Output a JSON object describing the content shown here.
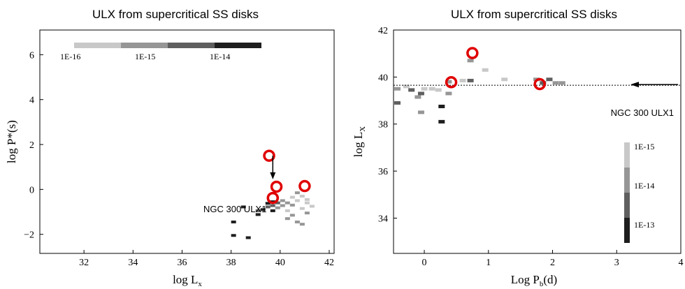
{
  "chart_data": [
    {
      "type": "heatmap",
      "title": "ULX from supercritical SS disks",
      "xlabel_main": "log L",
      "xlabel_sub": "x",
      "ylabel": "log P*(s)",
      "xlim": [
        30.2,
        42.2
      ],
      "ylim": [
        -2.85,
        7.1
      ],
      "xticks": [
        "32",
        "34",
        "36",
        "38",
        "40",
        "42"
      ],
      "yticks": [
        "6",
        "4",
        "2",
        "0",
        "−2"
      ],
      "ytick_values": [
        6,
        4,
        2,
        0,
        -2
      ],
      "colorbar": {
        "orientation": "horizontal",
        "labels": [
          "1E-16",
          "1E-15",
          "1E-14"
        ],
        "colors": [
          "#c8c8c8",
          "#969696",
          "#5f5f5f",
          "#1e1e1e"
        ]
      },
      "annotation": {
        "text": "NGC 300 ULX1",
        "x": 39.7,
        "y_from": 1.5,
        "y_to": 0.45
      },
      "cells": [
        {
          "x": 38.1,
          "y": -1.45,
          "c": "#1e1e1e"
        },
        {
          "x": 38.1,
          "y": -2.05,
          "c": "#1e1e1e"
        },
        {
          "x": 38.7,
          "y": -2.15,
          "c": "#1e1e1e"
        },
        {
          "x": 38.5,
          "y": -0.78,
          "c": "#1e1e1e"
        },
        {
          "x": 39.1,
          "y": -1.12,
          "c": "#1e1e1e"
        },
        {
          "x": 39.1,
          "y": -0.95,
          "c": "#5f5f5f"
        },
        {
          "x": 39.3,
          "y": -0.9,
          "c": "#1e1e1e"
        },
        {
          "x": 39.5,
          "y": -0.78,
          "c": "#5f5f5f"
        },
        {
          "x": 39.5,
          "y": -0.62,
          "c": "#1e1e1e"
        },
        {
          "x": 39.7,
          "y": -0.95,
          "c": "#1e1e1e"
        },
        {
          "x": 39.7,
          "y": -0.72,
          "c": "#5f5f5f"
        },
        {
          "x": 39.7,
          "y": -0.55,
          "c": "#1e1e1e"
        },
        {
          "x": 39.9,
          "y": -0.82,
          "c": "#969696"
        },
        {
          "x": 39.9,
          "y": -0.6,
          "c": "#5f5f5f"
        },
        {
          "x": 40.1,
          "y": -0.72,
          "c": "#969696"
        },
        {
          "x": 40.1,
          "y": -0.5,
          "c": "#969696"
        },
        {
          "x": 40.3,
          "y": -0.95,
          "c": "#c8c8c8"
        },
        {
          "x": 40.3,
          "y": -0.6,
          "c": "#969696"
        },
        {
          "x": 40.3,
          "y": -1.3,
          "c": "#969696"
        },
        {
          "x": 40.5,
          "y": -0.35,
          "c": "#c8c8c8"
        },
        {
          "x": 40.5,
          "y": -0.7,
          "c": "#969696"
        },
        {
          "x": 40.5,
          "y": -1.15,
          "c": "#969696"
        },
        {
          "x": 40.7,
          "y": -0.5,
          "c": "#c8c8c8"
        },
        {
          "x": 40.7,
          "y": -1.45,
          "c": "#969696"
        },
        {
          "x": 40.7,
          "y": -0.15,
          "c": "#969696"
        },
        {
          "x": 40.9,
          "y": -0.85,
          "c": "#c8c8c8"
        },
        {
          "x": 40.9,
          "y": -0.3,
          "c": "#c8c8c8"
        },
        {
          "x": 41.1,
          "y": -1.05,
          "c": "#969696"
        },
        {
          "x": 41.1,
          "y": -0.6,
          "c": "#c8c8c8"
        },
        {
          "x": 41.3,
          "y": -0.75,
          "c": "#c8c8c8"
        },
        {
          "x": 41.1,
          "y": -0.45,
          "c": "#c8c8c8"
        },
        {
          "x": 40.9,
          "y": -1.55,
          "c": "#969696"
        }
      ],
      "circles": [
        {
          "x": 39.55,
          "y": 1.5
        },
        {
          "x": 39.85,
          "y": 0.12
        },
        {
          "x": 39.7,
          "y": -0.38
        },
        {
          "x": 41.0,
          "y": 0.15
        }
      ]
    },
    {
      "type": "heatmap",
      "title": "ULX from supercritical SS disks",
      "xlabel_main": "Log P",
      "xlabel_sub": "b",
      "xlabel_tail": "(d)",
      "ylabel_main": "log L",
      "ylabel_sub": "X",
      "xlim": [
        -0.48,
        4.0
      ],
      "ylim": [
        32.5,
        42.0
      ],
      "xticks": [
        "0",
        "1",
        "2",
        "3",
        "4"
      ],
      "xtick_values": [
        0,
        1,
        2,
        3,
        4
      ],
      "yticks": [
        "34",
        "36",
        "38",
        "40",
        "42"
      ],
      "ytick_values": [
        34,
        36,
        38,
        40,
        42
      ],
      "colorbar": {
        "orientation": "vertical",
        "labels": [
          "1E-15",
          "1E-14",
          "1E-13"
        ],
        "colors": [
          "#c8c8c8",
          "#969696",
          "#5f5f5f",
          "#1e1e1e"
        ]
      },
      "reference_line": {
        "y": 39.65,
        "label": "NGC 300 ULX1"
      },
      "cells": [
        {
          "x": -0.42,
          "y": 39.5,
          "c": "#969696"
        },
        {
          "x": -0.42,
          "y": 38.9,
          "c": "#5f5f5f"
        },
        {
          "x": -0.28,
          "y": 39.6,
          "c": "#c8c8c8"
        },
        {
          "x": -0.2,
          "y": 39.45,
          "c": "#5f5f5f"
        },
        {
          "x": -0.1,
          "y": 39.15,
          "c": "#969696"
        },
        {
          "x": -0.05,
          "y": 39.3,
          "c": "#5f5f5f"
        },
        {
          "x": 0.0,
          "y": 39.5,
          "c": "#c8c8c8"
        },
        {
          "x": -0.05,
          "y": 38.5,
          "c": "#969696"
        },
        {
          "x": 0.12,
          "y": 39.5,
          "c": "#c8c8c8"
        },
        {
          "x": 0.22,
          "y": 39.45,
          "c": "#c8c8c8"
        },
        {
          "x": 0.27,
          "y": 38.75,
          "c": "#1e1e1e"
        },
        {
          "x": 0.27,
          "y": 38.1,
          "c": "#1e1e1e"
        },
        {
          "x": 0.38,
          "y": 39.3,
          "c": "#969696"
        },
        {
          "x": 0.38,
          "y": 39.8,
          "c": "#969696"
        },
        {
          "x": 0.6,
          "y": 39.85,
          "c": "#c8c8c8"
        },
        {
          "x": 0.72,
          "y": 39.85,
          "c": "#5f5f5f"
        },
        {
          "x": 0.72,
          "y": 40.7,
          "c": "#969696"
        },
        {
          "x": 0.95,
          "y": 40.3,
          "c": "#c8c8c8"
        },
        {
          "x": 1.25,
          "y": 39.9,
          "c": "#c8c8c8"
        },
        {
          "x": 1.75,
          "y": 39.9,
          "c": "#969696"
        },
        {
          "x": 1.85,
          "y": 39.75,
          "c": "#5f5f5f"
        },
        {
          "x": 1.95,
          "y": 39.9,
          "c": "#5f5f5f"
        },
        {
          "x": 2.05,
          "y": 39.75,
          "c": "#969696"
        },
        {
          "x": 2.15,
          "y": 39.75,
          "c": "#969696"
        }
      ],
      "circles": [
        {
          "x": 0.42,
          "y": 39.78
        },
        {
          "x": 0.75,
          "y": 41.02
        },
        {
          "x": 1.8,
          "y": 39.7
        }
      ]
    }
  ]
}
